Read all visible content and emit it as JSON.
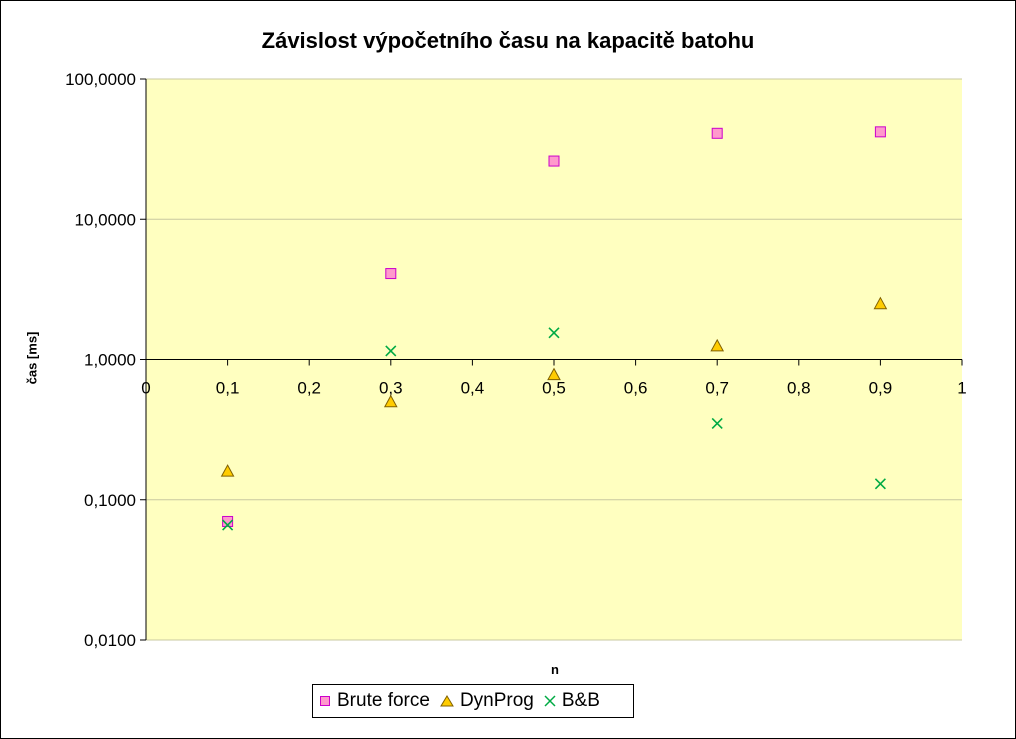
{
  "chart_data": {
    "type": "scatter",
    "title": "Závislost výpočetního času na kapacitě batohu",
    "xlabel": "n",
    "ylabel": "čas [ms]",
    "xlim": [
      0,
      1
    ],
    "ylim": [
      0.01,
      100
    ],
    "yscale": "log",
    "x_ticks": [
      "0",
      "0,1",
      "0,2",
      "0,3",
      "0,4",
      "0,5",
      "0,6",
      "0,7",
      "0,8",
      "0,9",
      "1"
    ],
    "y_ticks": [
      "0,0100",
      "0,1000",
      "1,0000",
      "10,0000",
      "100,0000"
    ],
    "grid": "horizontal",
    "plot_background": "#ffffc0",
    "legend_position": "bottom",
    "series": [
      {
        "name": "Brute force",
        "marker": "square",
        "color": "#ff99cc",
        "stroke": "#cc00cc",
        "x": [
          0.1,
          0.3,
          0.5,
          0.7,
          0.9
        ],
        "y": [
          0.07,
          4.1,
          26,
          41,
          42
        ]
      },
      {
        "name": "DynProg",
        "marker": "triangle",
        "color": "#ffcc00",
        "stroke": "#806000",
        "x": [
          0.1,
          0.3,
          0.5,
          0.7,
          0.9
        ],
        "y": [
          0.16,
          0.5,
          0.78,
          1.25,
          2.5
        ]
      },
      {
        "name": "B&B",
        "marker": "x",
        "color": "#00aa44",
        "stroke": "#007733",
        "x": [
          0.1,
          0.3,
          0.5,
          0.7,
          0.9
        ],
        "y": [
          0.066,
          1.15,
          1.55,
          0.35,
          0.13
        ]
      }
    ]
  }
}
